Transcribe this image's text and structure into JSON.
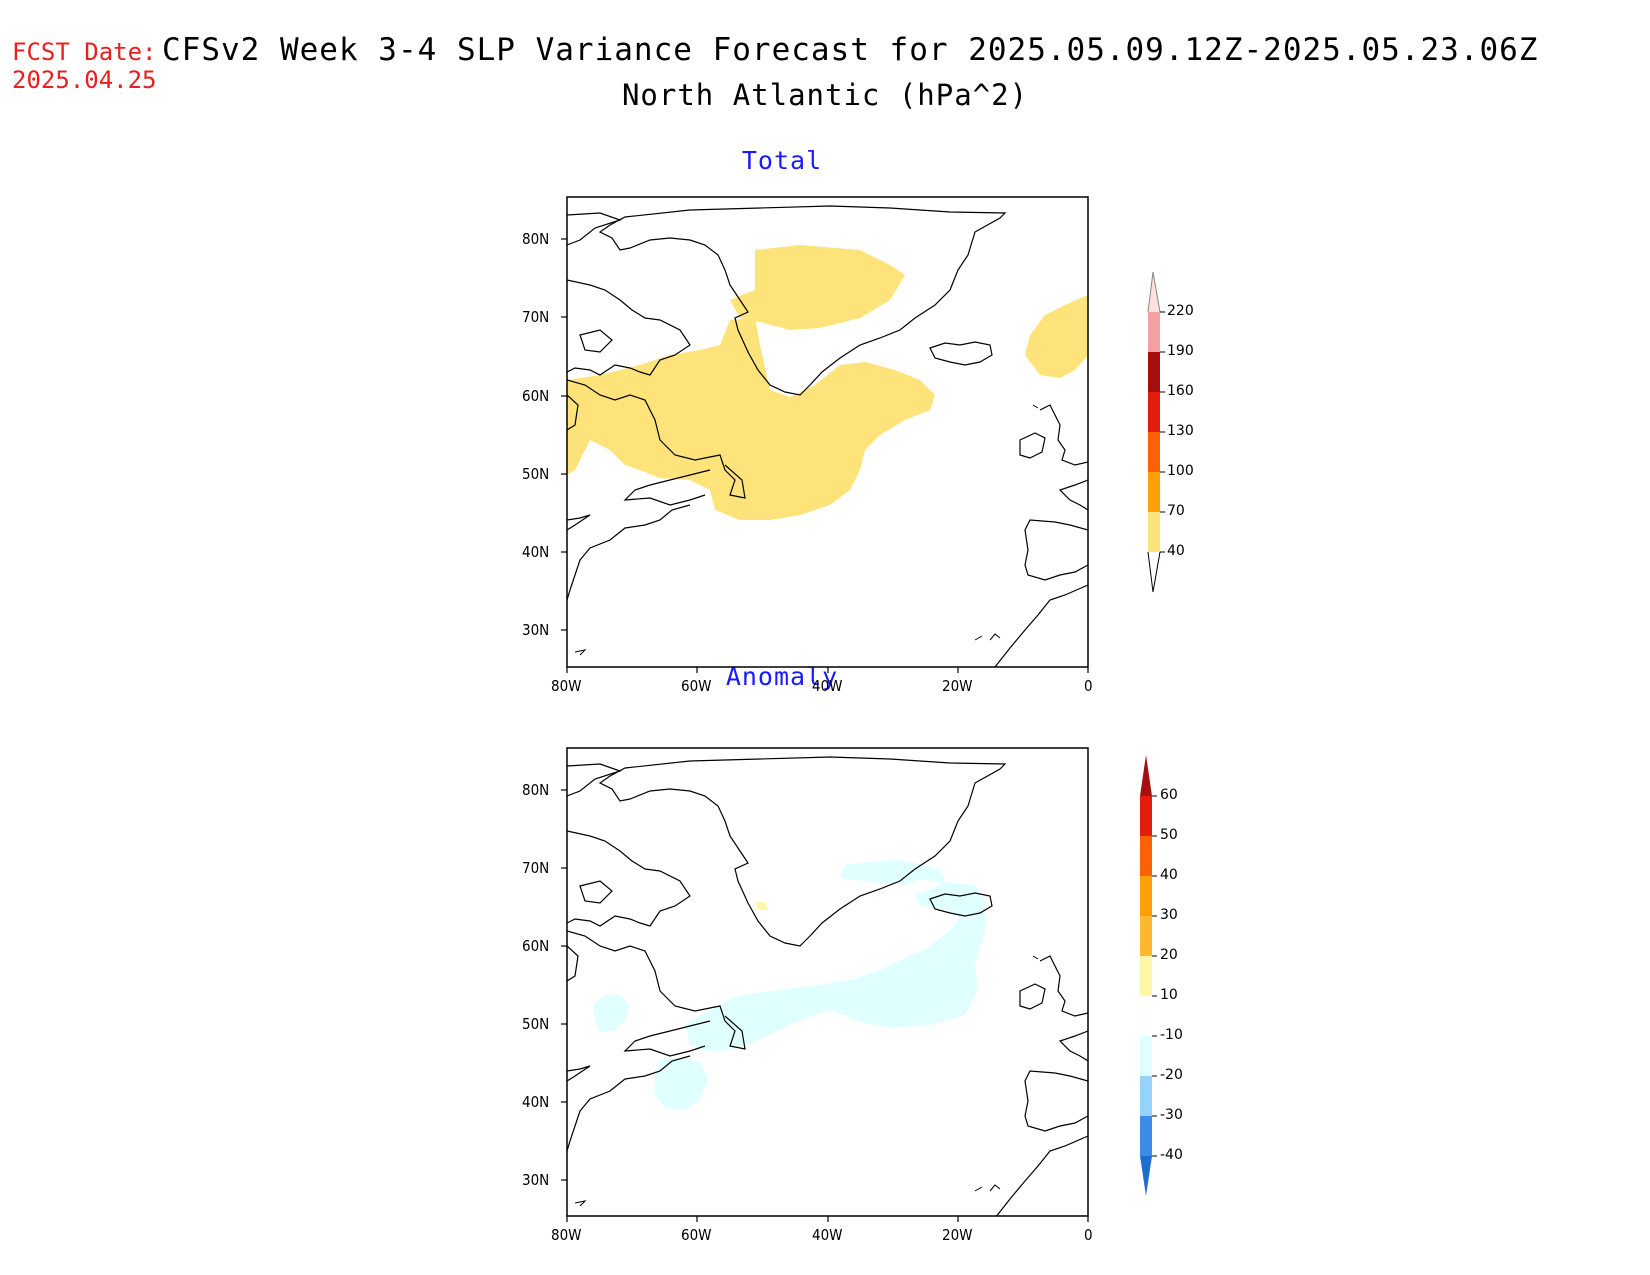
{
  "header": {
    "fcst_label": "FCST Date:",
    "fcst_date": "2025.04.25",
    "title": "CFSv2 Week 3-4 SLP Variance Forecast for 2025.05.09.12Z-2025.05.23.06Z",
    "subtitle": "North Atlantic (hPa^2)"
  },
  "panels": [
    {
      "title": "Total",
      "lat_ticks": [
        "80N",
        "70N",
        "60N",
        "50N",
        "40N",
        "30N"
      ],
      "lon_ticks": [
        "80W",
        "60W",
        "40W",
        "20W",
        "0"
      ],
      "colorbar_labels": [
        "220",
        "190",
        "160",
        "130",
        "100",
        "70",
        "40"
      ],
      "colorbar_colors": [
        "#fde0e0",
        "#f4a0a0",
        "#a50f0f",
        "#e21d0c",
        "#fb6208",
        "#fda008",
        "#fee27a"
      ],
      "shaded_level": "40-70"
    },
    {
      "title": "Anomaly",
      "lat_ticks": [
        "80N",
        "70N",
        "60N",
        "50N",
        "40N",
        "30N"
      ],
      "lon_ticks": [
        "80W",
        "60W",
        "40W",
        "20W",
        "0"
      ],
      "colorbar_labels": [
        "60",
        "50",
        "40",
        "30",
        "20",
        "10",
        "-10",
        "-20",
        "-30",
        "-40"
      ],
      "colorbar_colors": [
        "#a50f0f",
        "#e21d0c",
        "#fb6208",
        "#fda008",
        "#fdb830",
        "#fff7a8",
        "#ffffff",
        "#e0ffff",
        "#96d2fa",
        "#3c8ce6",
        "#1e6ed2"
      ],
      "shaded_levels": [
        "-20 to -10",
        "10 to 20"
      ]
    }
  ]
}
